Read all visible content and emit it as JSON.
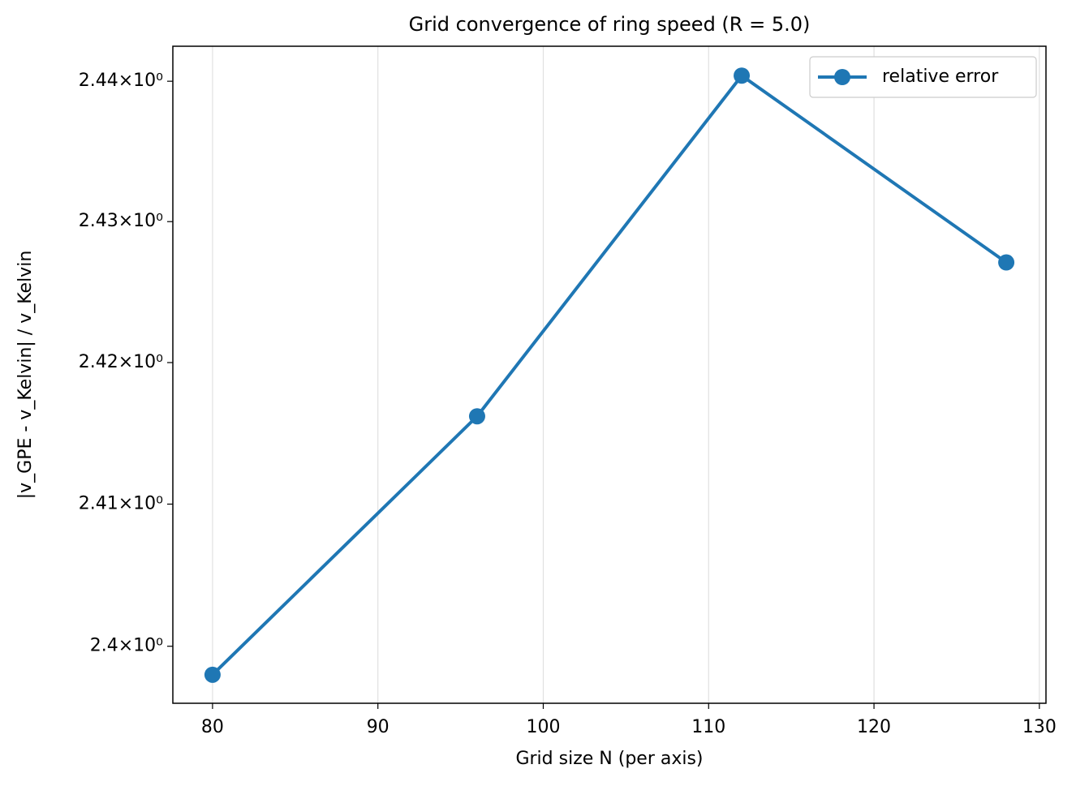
{
  "chart_data": {
    "type": "line",
    "title": "Grid convergence of ring speed (R = 5.0)",
    "x_label": "Grid size N (per axis)",
    "y_label": "|v_GPE - v_Kelvin| / v_Kelvin",
    "x": [
      80,
      96,
      112,
      128
    ],
    "series": [
      {
        "name": "relative error",
        "color": "#1f77b4",
        "values": [
          2.398,
          2.4162,
          2.4404,
          2.4271
        ]
      }
    ],
    "xlim": [
      77.6,
      130.4
    ],
    "ylim": [
      2.396,
      2.4425
    ],
    "xticks": [
      80,
      90,
      100,
      110,
      120,
      130
    ],
    "yticks": [
      {
        "value": 2.4,
        "label": "2.4×10⁰"
      },
      {
        "value": 2.41,
        "label": "2.41×10⁰"
      },
      {
        "value": 2.42,
        "label": "2.42×10⁰"
      },
      {
        "value": 2.43,
        "label": "2.43×10⁰"
      },
      {
        "value": 2.44,
        "label": "2.44×10⁰"
      }
    ],
    "yscale": "log",
    "grid": "x",
    "legend": "upper right"
  }
}
